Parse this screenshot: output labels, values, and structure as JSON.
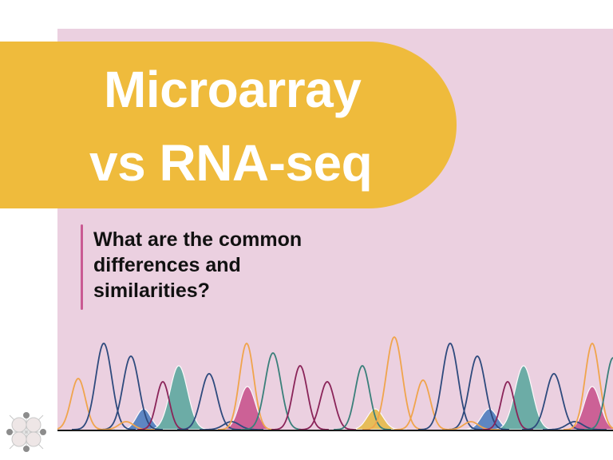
{
  "title": {
    "line1": "Microarray",
    "line2": "vs RNA-seq"
  },
  "subtitle": "What are the common differences and similarities?",
  "colors": {
    "background": "#ffffff",
    "panel": "#ebd0e0",
    "title_pill": "#efbb3c",
    "title_text": "#ffffff",
    "subtitle_bar": "#c95a93",
    "subtitle_text": "#111111",
    "peak_orange": "#f0a44c",
    "peak_navy": "#2e4a7d",
    "peak_teal": "#3a7f7a",
    "peak_maroon": "#8a2459",
    "fill_blue": "#4f7fbf",
    "fill_teal": "#5fa9a0",
    "fill_magenta": "#c9558f",
    "fill_yellow": "#e6bc4b",
    "baseline": "#1a1a1a"
  },
  "decorations": {
    "chromatogram": "line-peaks-decoration",
    "logo": "dna-network-logo"
  }
}
